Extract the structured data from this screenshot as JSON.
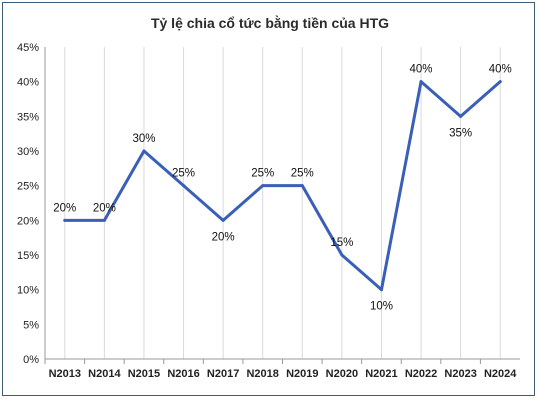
{
  "chart_data": {
    "type": "line",
    "title": "Tỷ lệ chia cổ tức bằng tiền của HTG",
    "xlabel": "",
    "ylabel": "",
    "categories": [
      "N2013",
      "N2014",
      "N2015",
      "N2016",
      "N2017",
      "N2018",
      "N2019",
      "N2020",
      "N2021",
      "N2022",
      "N2023",
      "N2024"
    ],
    "series": [
      {
        "values": [
          20,
          20,
          30,
          25,
          20,
          25,
          25,
          15,
          10,
          40,
          35,
          40
        ]
      }
    ],
    "data_labels": [
      "20%",
      "20%",
      "30%",
      "25%",
      "20%",
      "25%",
      "25%",
      "15%",
      "10%",
      "40%",
      "35%",
      "40%"
    ],
    "y_ticks": [
      "0%",
      "5%",
      "10%",
      "15%",
      "20%",
      "25%",
      "30%",
      "35%",
      "40%",
      "45%"
    ],
    "ylim": [
      0,
      45
    ],
    "grid": "vertical",
    "legend": "none",
    "colors": {
      "line": "#3a5fb8",
      "grid": "#d9d9d9",
      "frame": "#3d5d7a"
    }
  }
}
